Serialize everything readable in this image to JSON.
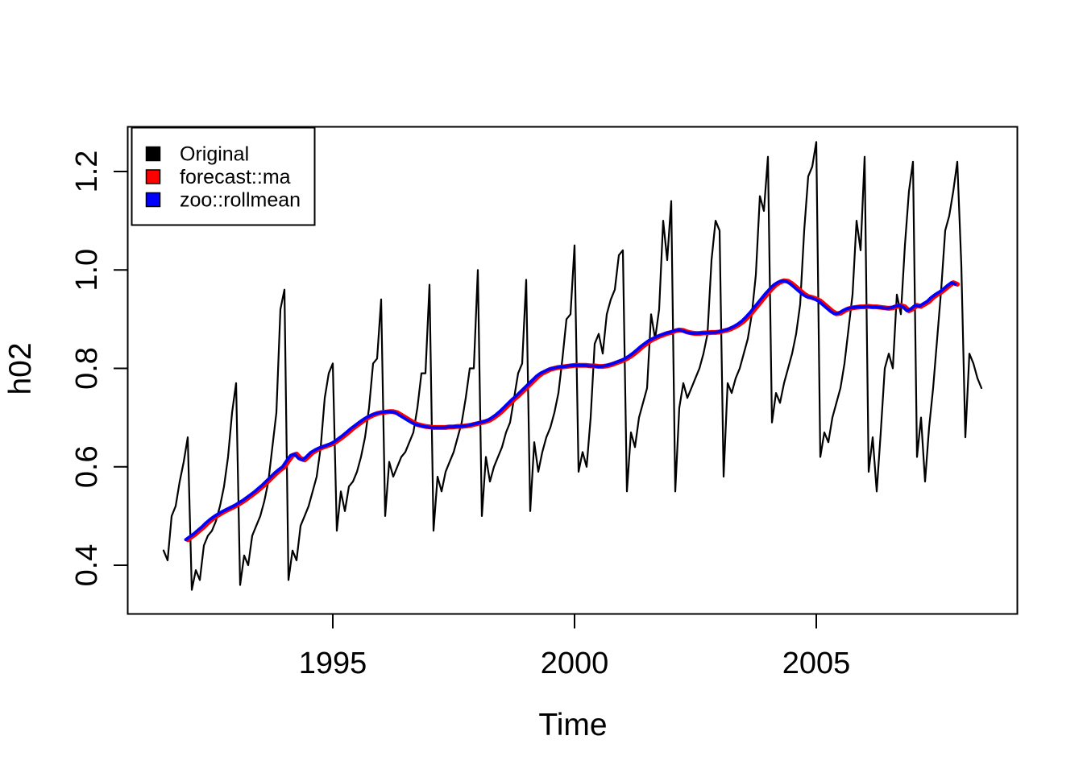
{
  "figure": {
    "background": "#FFFFFF",
    "plot_border_color": "#000000"
  },
  "legend": {
    "items": [
      {
        "label": "Original",
        "color": "#000000"
      },
      {
        "label": "forecast::ma",
        "color": "#FF0000"
      },
      {
        "label": "zoo::rollmean",
        "color": "#0000FF"
      }
    ]
  },
  "chart_data": {
    "type": "line",
    "title": "",
    "xlabel": "Time",
    "ylabel": "h02",
    "xlim": [
      1990.8,
      2009.1
    ],
    "ylim": [
      0.32,
      1.27
    ],
    "grid": false,
    "legend_position": "top-left",
    "x_tick_values": [
      1995,
      2000,
      2005
    ],
    "x_tick_labels": [
      "1995",
      "2000",
      "2005"
    ],
    "y_tick_values": [
      0.4,
      0.6,
      0.8,
      1.0,
      1.2
    ],
    "y_tick_labels": [
      "0.4",
      "0.6",
      "0.8",
      "1.0",
      "1.2"
    ],
    "x_unit": "decimal_year_monthly",
    "series": [
      {
        "name": "Original",
        "color": "#000000",
        "t_start": 1991.5,
        "dt": 0.0833333,
        "values": [
          0.43,
          0.41,
          0.5,
          0.52,
          0.57,
          0.61,
          0.66,
          0.35,
          0.39,
          0.37,
          0.44,
          0.46,
          0.47,
          0.49,
          0.52,
          0.56,
          0.62,
          0.71,
          0.77,
          0.36,
          0.42,
          0.4,
          0.46,
          0.48,
          0.5,
          0.53,
          0.57,
          0.64,
          0.71,
          0.92,
          0.96,
          0.37,
          0.43,
          0.41,
          0.48,
          0.5,
          0.52,
          0.55,
          0.58,
          0.64,
          0.74,
          0.79,
          0.81,
          0.47,
          0.55,
          0.51,
          0.56,
          0.57,
          0.59,
          0.62,
          0.66,
          0.72,
          0.81,
          0.82,
          0.94,
          0.5,
          0.61,
          0.58,
          0.6,
          0.62,
          0.63,
          0.65,
          0.67,
          0.72,
          0.79,
          0.79,
          0.97,
          0.47,
          0.58,
          0.55,
          0.59,
          0.61,
          0.63,
          0.66,
          0.69,
          0.74,
          0.8,
          0.8,
          1.0,
          0.5,
          0.62,
          0.57,
          0.6,
          0.62,
          0.64,
          0.67,
          0.69,
          0.74,
          0.79,
          0.81,
          0.98,
          0.51,
          0.65,
          0.59,
          0.63,
          0.66,
          0.68,
          0.71,
          0.75,
          0.82,
          0.9,
          0.91,
          1.05,
          0.59,
          0.63,
          0.6,
          0.7,
          0.85,
          0.87,
          0.83,
          0.91,
          0.94,
          0.96,
          1.03,
          1.04,
          0.55,
          0.67,
          0.64,
          0.7,
          0.73,
          0.76,
          0.91,
          0.86,
          0.92,
          1.1,
          1.02,
          1.14,
          0.55,
          0.72,
          0.77,
          0.74,
          0.76,
          0.78,
          0.8,
          0.83,
          0.87,
          1.02,
          1.1,
          1.08,
          0.58,
          0.77,
          0.75,
          0.78,
          0.8,
          0.83,
          0.86,
          0.91,
          0.99,
          1.15,
          1.12,
          1.23,
          0.69,
          0.75,
          0.73,
          0.77,
          0.8,
          0.83,
          0.87,
          0.93,
          1.08,
          1.19,
          1.21,
          1.26,
          0.62,
          0.67,
          0.65,
          0.7,
          0.73,
          0.76,
          0.81,
          0.88,
          0.95,
          1.1,
          1.04,
          1.23,
          0.59,
          0.66,
          0.55,
          0.67,
          0.8,
          0.83,
          0.8,
          0.95,
          0.91,
          1.05,
          1.16,
          1.22,
          0.62,
          0.7,
          0.57,
          0.68,
          0.76,
          0.86,
          0.96,
          1.08,
          1.11,
          1.16,
          1.22,
          1.01,
          0.66,
          0.83,
          0.81,
          0.78,
          0.76
        ]
      },
      {
        "name": "forecast::ma",
        "color": "#FF0000",
        "t_start": 1992.0,
        "dt": 0.0833333,
        "values": [
          0.452,
          0.458,
          0.464,
          0.471,
          0.478,
          0.486,
          0.493,
          0.499,
          0.504,
          0.509,
          0.513,
          0.517,
          0.521,
          0.526,
          0.531,
          0.537,
          0.543,
          0.549,
          0.556,
          0.563,
          0.571,
          0.579,
          0.587,
          0.594,
          0.6,
          0.612,
          0.623,
          0.626,
          0.617,
          0.614,
          0.621,
          0.629,
          0.634,
          0.638,
          0.641,
          0.644,
          0.647,
          0.652,
          0.658,
          0.664,
          0.671,
          0.678,
          0.684,
          0.69,
          0.696,
          0.701,
          0.705,
          0.708,
          0.71,
          0.711,
          0.712,
          0.712,
          0.71,
          0.705,
          0.7,
          0.695,
          0.69,
          0.686,
          0.684,
          0.682,
          0.681,
          0.68,
          0.68,
          0.68,
          0.68,
          0.681,
          0.681,
          0.682,
          0.682,
          0.683,
          0.684,
          0.686,
          0.688,
          0.69,
          0.692,
          0.695,
          0.7,
          0.706,
          0.713,
          0.721,
          0.729,
          0.737,
          0.744,
          0.752,
          0.76,
          0.768,
          0.776,
          0.784,
          0.79,
          0.794,
          0.798,
          0.8,
          0.802,
          0.803,
          0.804,
          0.805,
          0.806,
          0.806,
          0.806,
          0.806,
          0.805,
          0.805,
          0.804,
          0.804,
          0.805,
          0.807,
          0.81,
          0.813,
          0.816,
          0.82,
          0.825,
          0.831,
          0.838,
          0.845,
          0.851,
          0.857,
          0.861,
          0.865,
          0.868,
          0.871,
          0.873,
          0.876,
          0.878,
          0.877,
          0.874,
          0.872,
          0.871,
          0.871,
          0.872,
          0.872,
          0.873,
          0.873,
          0.874,
          0.876,
          0.878,
          0.881,
          0.885,
          0.89,
          0.896,
          0.904,
          0.913,
          0.923,
          0.933,
          0.943,
          0.953,
          0.962,
          0.97,
          0.975,
          0.978,
          0.977,
          0.972,
          0.965,
          0.958,
          0.951,
          0.946,
          0.944,
          0.941,
          0.937,
          0.93,
          0.923,
          0.916,
          0.911,
          0.912,
          0.917,
          0.921,
          0.923,
          0.924,
          0.925,
          0.925,
          0.926,
          0.925,
          0.925,
          0.924,
          0.923,
          0.922,
          0.923,
          0.926,
          0.928,
          0.925,
          0.917,
          0.921,
          0.928,
          0.926,
          0.931,
          0.936,
          0.944,
          0.95,
          0.955,
          0.961,
          0.968,
          0.974,
          0.971
        ]
      },
      {
        "name": "zoo::rollmean",
        "color": "#0000FF",
        "t_start": 1991.9583,
        "dt": 0.0833333,
        "values": [
          0.452,
          0.458,
          0.464,
          0.471,
          0.478,
          0.486,
          0.493,
          0.499,
          0.504,
          0.509,
          0.513,
          0.517,
          0.521,
          0.526,
          0.531,
          0.537,
          0.543,
          0.549,
          0.556,
          0.563,
          0.571,
          0.579,
          0.587,
          0.594,
          0.6,
          0.612,
          0.623,
          0.626,
          0.617,
          0.614,
          0.621,
          0.629,
          0.634,
          0.638,
          0.641,
          0.644,
          0.647,
          0.652,
          0.658,
          0.664,
          0.671,
          0.678,
          0.684,
          0.69,
          0.696,
          0.701,
          0.705,
          0.708,
          0.71,
          0.711,
          0.712,
          0.712,
          0.71,
          0.705,
          0.7,
          0.695,
          0.69,
          0.686,
          0.684,
          0.682,
          0.681,
          0.68,
          0.68,
          0.68,
          0.68,
          0.681,
          0.681,
          0.682,
          0.682,
          0.683,
          0.684,
          0.686,
          0.688,
          0.69,
          0.692,
          0.695,
          0.7,
          0.706,
          0.713,
          0.721,
          0.729,
          0.737,
          0.744,
          0.752,
          0.76,
          0.768,
          0.776,
          0.784,
          0.79,
          0.794,
          0.798,
          0.8,
          0.802,
          0.803,
          0.804,
          0.805,
          0.806,
          0.806,
          0.806,
          0.806,
          0.805,
          0.805,
          0.804,
          0.804,
          0.805,
          0.807,
          0.81,
          0.813,
          0.816,
          0.82,
          0.825,
          0.831,
          0.838,
          0.845,
          0.851,
          0.857,
          0.861,
          0.865,
          0.868,
          0.871,
          0.873,
          0.876,
          0.878,
          0.877,
          0.874,
          0.872,
          0.871,
          0.871,
          0.872,
          0.872,
          0.873,
          0.873,
          0.874,
          0.876,
          0.878,
          0.881,
          0.885,
          0.89,
          0.896,
          0.904,
          0.913,
          0.923,
          0.933,
          0.943,
          0.953,
          0.962,
          0.97,
          0.975,
          0.978,
          0.977,
          0.972,
          0.965,
          0.958,
          0.951,
          0.946,
          0.944,
          0.941,
          0.937,
          0.93,
          0.923,
          0.916,
          0.911,
          0.912,
          0.917,
          0.921,
          0.923,
          0.924,
          0.925,
          0.925,
          0.926,
          0.925,
          0.925,
          0.924,
          0.923,
          0.922,
          0.923,
          0.926,
          0.928,
          0.925,
          0.917,
          0.921,
          0.928,
          0.926,
          0.931,
          0.936,
          0.944,
          0.95,
          0.955,
          0.961,
          0.968,
          0.974,
          0.971
        ]
      }
    ]
  }
}
